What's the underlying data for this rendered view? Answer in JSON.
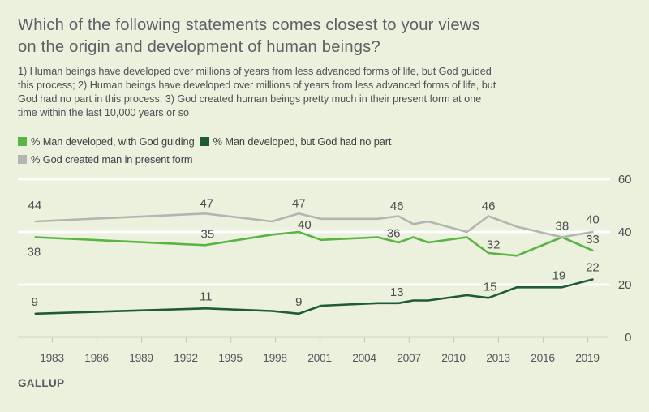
{
  "colors": {
    "background": "#ecf1de",
    "title_text": "#5d6064",
    "description_text": "#4d5054",
    "legend_text": "#3d4043",
    "data_label_text": "#4b4e51",
    "axis_tick_text": "#53565a",
    "gridline": "#ffffff",
    "axis_line": "#c9ccc0",
    "brand_text": "#595c5f",
    "series_god_guiding": "#58b544",
    "series_no_part": "#1d5c35",
    "series_present_form": "#b3b5b0"
  },
  "title": {
    "lines": [
      "Which of the following statements comes closest to your views",
      "on the origin and development of human beings?"
    ]
  },
  "description": {
    "lines": [
      "1) Human beings have developed over millions of years from less advanced forms of life, but God guided",
      "this process; 2) Human beings have developed over millions of years from less advanced forms of life, but",
      "God had no part in this process; 3) God created human beings pretty much in their present form at one",
      "time within the last 10,000 years or so"
    ]
  },
  "legend": {
    "rows": [
      [
        {
          "label": "% Man developed, with God guiding",
          "color": "#58b544"
        },
        {
          "label": "% Man developed, but God had no part",
          "color": "#1d5c35"
        }
      ],
      [
        {
          "label": "% God created man in present form",
          "color": "#b3b5b0"
        }
      ]
    ]
  },
  "footer": {
    "brand": "GALLUP"
  },
  "chart_data": {
    "type": "line",
    "title": "Which of the following statements comes closest to your views on the origin and development of human beings?",
    "x": [
      1982,
      1993,
      1997,
      1999,
      2001,
      2004,
      2006,
      2007,
      2008,
      2010,
      2012,
      2014,
      2017,
      2019
    ],
    "x_plot": [
      1981.9,
      1993.3,
      1997.8,
      1999.6,
      2001.1,
      2004.9,
      2006.3,
      2007.3,
      2008.3,
      2010.9,
      2012.35,
      2014.25,
      2017.3,
      2019.35
    ],
    "x_tick_labels": [
      "1983",
      "1986",
      "1989",
      "1992",
      "1995",
      "1998",
      "2001",
      "2004",
      "2007",
      "2010",
      "2013",
      "2016",
      "2019"
    ],
    "x_tick_years": [
      1983,
      1986,
      1989,
      1992,
      1995,
      1998,
      2001,
      2004,
      2007,
      2010,
      2013,
      2016,
      2019
    ],
    "y_ticks": [
      0,
      20,
      40,
      60
    ],
    "ylim": [
      0,
      60
    ],
    "grid": "horizontal",
    "legend_position": "top-left",
    "series": [
      {
        "name": "% Man developed, with God guiding",
        "color": "#58b544",
        "values": [
          38,
          35,
          39,
          40,
          37,
          38,
          36,
          38,
          36,
          38,
          32,
          31,
          38,
          33
        ],
        "point_labels": [
          {
            "i": 0,
            "dx": -2,
            "dy": 23
          },
          {
            "i": 1,
            "dx": 3,
            "dy": -9
          },
          {
            "i": 3,
            "dx": 7,
            "dy": -4
          },
          {
            "i": 6,
            "dx": -6,
            "dy": -6.5
          },
          {
            "i": 10,
            "dx": 6,
            "dy": -5.5
          },
          {
            "i": 13,
            "dx": 0,
            "dy": -9
          }
        ]
      },
      {
        "name": "% Man developed, but God had no part",
        "color": "#1d5c35",
        "values": [
          9,
          11,
          10,
          9,
          12,
          13,
          13,
          14,
          14,
          16,
          15,
          19,
          19,
          22
        ],
        "point_labels": [
          {
            "i": 0,
            "dx": -1,
            "dy": -10
          },
          {
            "i": 1,
            "dx": 1,
            "dy": -10
          },
          {
            "i": 3,
            "dx": 0,
            "dy": -10
          },
          {
            "i": 6,
            "dx": -2,
            "dy": -9
          },
          {
            "i": 10,
            "dx": 2,
            "dy": -9
          },
          {
            "i": 12,
            "dx": -4,
            "dy": -10
          },
          {
            "i": 13,
            "dx": 0,
            "dy": -10
          }
        ]
      },
      {
        "name": "% God created man in present form",
        "color": "#b3b5b0",
        "values": [
          44,
          47,
          44,
          47,
          45,
          45,
          46,
          43,
          44,
          40,
          46,
          42,
          38,
          40
        ],
        "point_labels": [
          {
            "i": 0,
            "dx": -1,
            "dy": -15
          },
          {
            "i": 1,
            "dx": 2,
            "dy": -8
          },
          {
            "i": 3,
            "dx": 0,
            "dy": -8
          },
          {
            "i": 6,
            "dx": -2,
            "dy": -7.5
          },
          {
            "i": 10,
            "dx": 0,
            "dy": -7.5
          },
          {
            "i": 12,
            "dx": 0,
            "dy": -9
          },
          {
            "i": 13,
            "dx": 0,
            "dy": -10.5
          }
        ]
      }
    ]
  }
}
